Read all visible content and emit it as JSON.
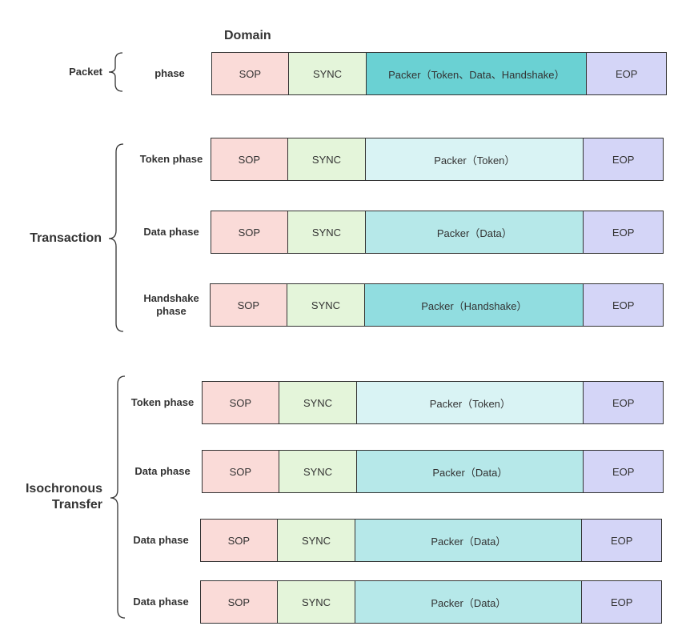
{
  "domain_title": "Domain",
  "colors": {
    "sop": "#fadbd8",
    "sync": "#e4f5da",
    "eop": "#d4d5f7",
    "packer_all": "#6ad1d3",
    "packer_token": "#d9f3f4",
    "packer_data": "#b6e8e9",
    "packer_handshake": "#91dde0"
  },
  "groups": {
    "packet": {
      "label": "Packet",
      "rows": [
        {
          "phase": "phase",
          "sop": "SOP",
          "sync": "SYNC",
          "packer": "Packer（Token、Data、Handshake）",
          "packer_kind": "packer_all",
          "eop": "EOP"
        }
      ]
    },
    "transaction": {
      "label": "Transaction",
      "rows": [
        {
          "phase": "Token phase",
          "sop": "SOP",
          "sync": "SYNC",
          "packer": "Packer（Token）",
          "packer_kind": "packer_token",
          "eop": "EOP"
        },
        {
          "phase": "Data phase",
          "sop": "SOP",
          "sync": "SYNC",
          "packer": "Packer（Data）",
          "packer_kind": "packer_data",
          "eop": "EOP"
        },
        {
          "phase": "Handshake phase",
          "sop": "SOP",
          "sync": "SYNC",
          "packer": "Packer（Handshake）",
          "packer_kind": "packer_handshake",
          "eop": "EOP"
        }
      ]
    },
    "isochronous": {
      "label": "Isochronous Transfer",
      "rows": [
        {
          "phase": "Token phase",
          "sop": "SOP",
          "sync": "SYNC",
          "packer": "Packer（Token）",
          "packer_kind": "packer_token",
          "eop": "EOP"
        },
        {
          "phase": "Data phase",
          "sop": "SOP",
          "sync": "SYNC",
          "packer": "Packer（Data）",
          "packer_kind": "packer_data",
          "eop": "EOP"
        },
        {
          "phase": "Data phase",
          "sop": "SOP",
          "sync": "SYNC",
          "packer": "Packer（Data）",
          "packer_kind": "packer_data",
          "eop": "EOP"
        },
        {
          "phase": "Data phase",
          "sop": "SOP",
          "sync": "SYNC",
          "packer": "Packer（Data）",
          "packer_kind": "packer_data",
          "eop": "EOP"
        }
      ]
    }
  }
}
